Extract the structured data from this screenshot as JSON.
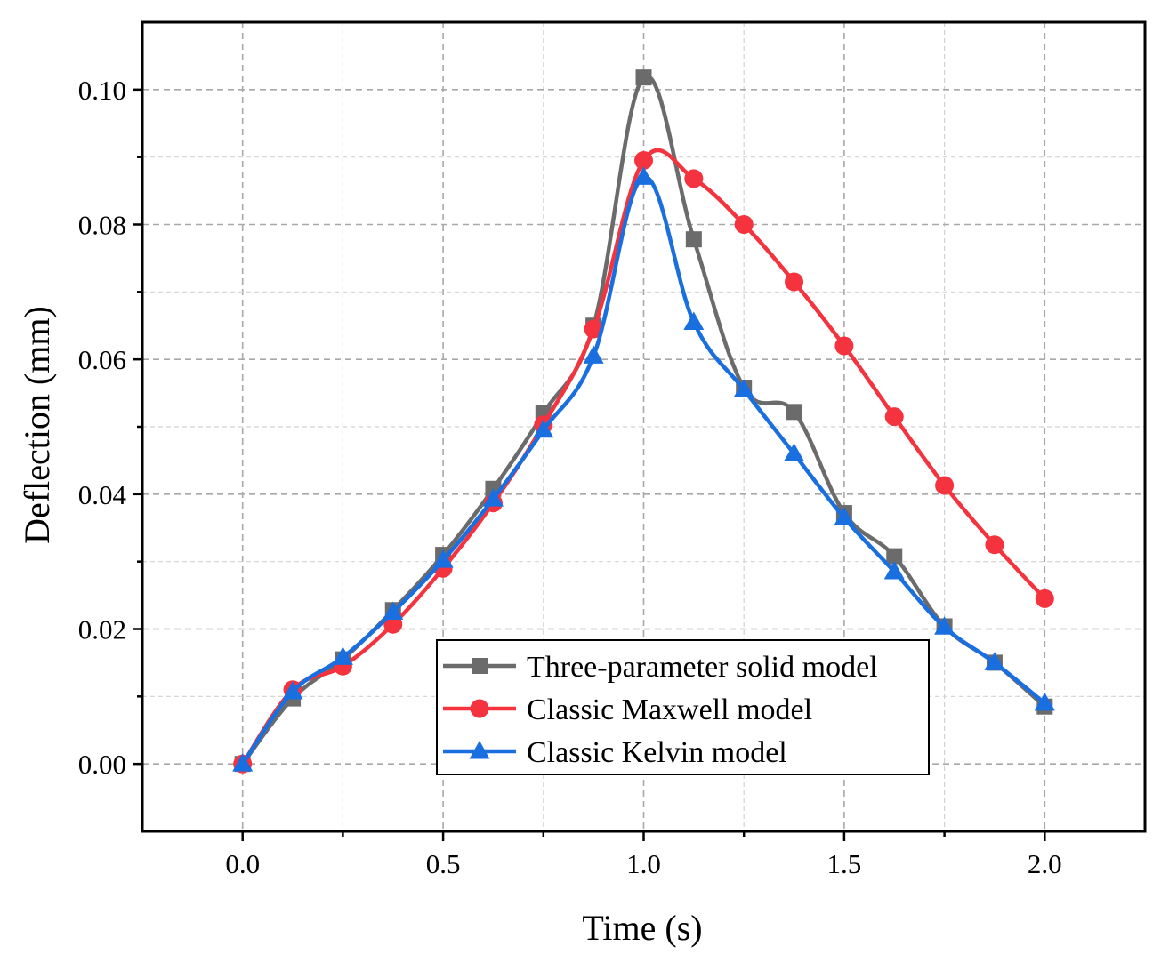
{
  "chart_data": {
    "type": "line",
    "title": "",
    "xlabel": "Time (s)",
    "ylabel": "Deflection (mm)",
    "xlim": [
      -0.25,
      2.25
    ],
    "ylim": [
      -0.01,
      0.11
    ],
    "xticks": [
      0.0,
      0.5,
      1.0,
      1.5,
      2.0
    ],
    "xtick_labels": [
      "0.0",
      "0.5",
      "1.0",
      "1.5",
      "2.0"
    ],
    "yticks": [
      0.0,
      0.02,
      0.04,
      0.06,
      0.08,
      0.1
    ],
    "ytick_labels": [
      "0.00",
      "0.02",
      "0.04",
      "0.06",
      "0.08",
      "0.10"
    ],
    "grid": true,
    "legend_position": "bottom-center",
    "x": [
      0,
      0.125,
      0.25,
      0.375,
      0.5,
      0.625,
      0.75,
      0.875,
      1.0,
      1.125,
      1.25,
      1.375,
      1.5,
      1.625,
      1.75,
      1.875,
      2.0
    ],
    "series": [
      {
        "name": "Three-parameter solid model",
        "color": "#6b6b6b",
        "marker": "square",
        "values": [
          0.0,
          0.0097,
          0.0155,
          0.0228,
          0.031,
          0.0408,
          0.052,
          0.065,
          0.1018,
          0.0778,
          0.0558,
          0.0522,
          0.0372,
          0.0308,
          0.0204,
          0.015,
          0.0085
        ]
      },
      {
        "name": "Classic Maxwell model",
        "color": "#f5333f",
        "marker": "circle",
        "values": [
          0.0,
          0.011,
          0.0145,
          0.0207,
          0.029,
          0.0387,
          0.0503,
          0.0645,
          0.0895,
          0.0868,
          0.08,
          0.0715,
          0.062,
          0.0515,
          0.0413,
          0.0325,
          0.0245
        ]
      },
      {
        "name": "Classic Kelvin model",
        "color": "#1a6fe0",
        "marker": "triangle",
        "values": [
          0.0,
          0.0107,
          0.0158,
          0.0225,
          0.0302,
          0.0393,
          0.0495,
          0.0605,
          0.087,
          0.0655,
          0.0555,
          0.046,
          0.0365,
          0.0285,
          0.0203,
          0.015,
          0.009
        ]
      }
    ]
  }
}
